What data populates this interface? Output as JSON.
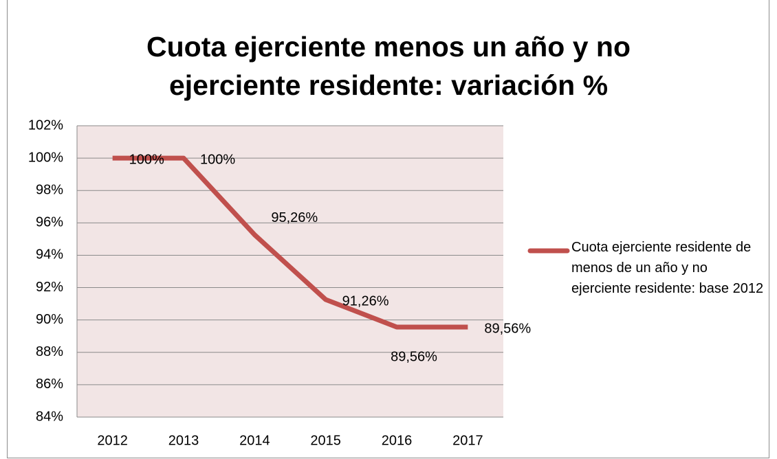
{
  "chart_data": {
    "type": "line",
    "title": "Cuota ejerciente menos un año y no ejerciente residente: variación %",
    "categories": [
      "2012",
      "2013",
      "2014",
      "2015",
      "2016",
      "2017"
    ],
    "series": [
      {
        "name": "Cuota ejerciente residente de menos de un año y no ejerciente residente: base 2012",
        "color": "#c0504d",
        "values": [
          100,
          100,
          95.26,
          91.26,
          89.56,
          89.56
        ],
        "value_labels": [
          "100%",
          "100%",
          "95,26%",
          "91,26%",
          "89,56%",
          "89,56%"
        ]
      }
    ],
    "ylim": [
      84,
      102
    ],
    "yticks": [
      {
        "value": 84,
        "label": "84%"
      },
      {
        "value": 86,
        "label": "86%"
      },
      {
        "value": 88,
        "label": "88%"
      },
      {
        "value": 90,
        "label": "90%"
      },
      {
        "value": 92,
        "label": "92%"
      },
      {
        "value": 94,
        "label": "94%"
      },
      {
        "value": 96,
        "label": "96%"
      },
      {
        "value": 98,
        "label": "98%"
      },
      {
        "value": 100,
        "label": "100%"
      },
      {
        "value": 102,
        "label": "102%"
      }
    ],
    "grid": true,
    "legend": "right"
  }
}
